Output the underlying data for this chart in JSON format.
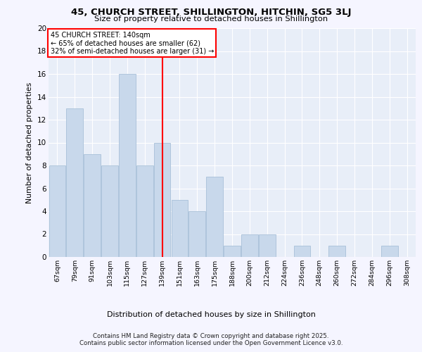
{
  "title": "45, CHURCH STREET, SHILLINGTON, HITCHIN, SG5 3LJ",
  "subtitle": "Size of property relative to detached houses in Shillington",
  "xlabel": "Distribution of detached houses by size in Shillington",
  "ylabel": "Number of detached properties",
  "categories": [
    "67sqm",
    "79sqm",
    "91sqm",
    "103sqm",
    "115sqm",
    "127sqm",
    "139sqm",
    "151sqm",
    "163sqm",
    "175sqm",
    "188sqm",
    "200sqm",
    "212sqm",
    "224sqm",
    "236sqm",
    "248sqm",
    "260sqm",
    "272sqm",
    "284sqm",
    "296sqm",
    "308sqm"
  ],
  "values": [
    8,
    13,
    9,
    8,
    16,
    8,
    10,
    5,
    4,
    7,
    1,
    2,
    2,
    0,
    1,
    0,
    1,
    0,
    0,
    1,
    0
  ],
  "bar_color": "#c8d8eb",
  "bar_edgecolor": "#a8c0d8",
  "reference_line_x": 6,
  "annotation_title": "45 CHURCH STREET: 140sqm",
  "annotation_line1": "← 65% of detached houses are smaller (62)",
  "annotation_line2": "32% of semi-detached houses are larger (31) →",
  "ylim": [
    0,
    20
  ],
  "yticks": [
    0,
    2,
    4,
    6,
    8,
    10,
    12,
    14,
    16,
    18,
    20
  ],
  "footer1": "Contains HM Land Registry data © Crown copyright and database right 2025.",
  "footer2": "Contains public sector information licensed under the Open Government Licence v3.0.",
  "fig_facecolor": "#f5f5ff",
  "plot_bg_color": "#e8eef8",
  "grid_color": "#ffffff"
}
